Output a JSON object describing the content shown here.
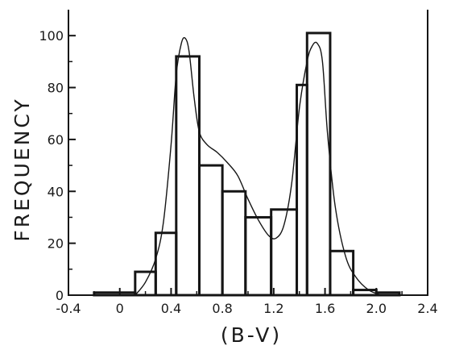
{
  "chart_data": {
    "type": "histogram",
    "title": "",
    "xlabel": "(B-V)",
    "ylabel": "FREQUENCY",
    "xlim": [
      -0.4,
      2.4
    ],
    "ylim": [
      0,
      110
    ],
    "xticks": [
      -0.4,
      0,
      0.4,
      0.8,
      1.2,
      1.6,
      2.0,
      2.4
    ],
    "xtick_labels": [
      "-0.4",
      "0",
      "0.4",
      "0.8",
      "1.2",
      "1.6",
      "2.0",
      "2.4"
    ],
    "yticks": [
      0,
      20,
      40,
      60,
      80,
      100
    ],
    "ytick_labels": [
      "0",
      "20",
      "40",
      "60",
      "80",
      "100"
    ],
    "grid": false,
    "series": [
      {
        "kind": "histogram",
        "bins": [
          {
            "x0": -0.2,
            "x1": 0.12,
            "y": 1
          },
          {
            "x0": 0.12,
            "x1": 0.28,
            "y": 9
          },
          {
            "x0": 0.28,
            "x1": 0.44,
            "y": 24
          },
          {
            "x0": 0.44,
            "x1": 0.62,
            "y": 92
          },
          {
            "x0": 0.62,
            "x1": 0.8,
            "y": 50
          },
          {
            "x0": 0.8,
            "x1": 0.98,
            "y": 40
          },
          {
            "x0": 0.98,
            "x1": 1.18,
            "y": 30
          },
          {
            "x0": 1.18,
            "x1": 1.38,
            "y": 33
          },
          {
            "x0": 1.38,
            "x1": 1.46,
            "y": 81
          },
          {
            "x0": 1.46,
            "x1": 1.64,
            "y": 101
          },
          {
            "x0": 1.64,
            "x1": 1.82,
            "y": 17
          },
          {
            "x0": 1.82,
            "x1": 2.0,
            "y": 2
          },
          {
            "x0": 2.0,
            "x1": 2.18,
            "y": 1
          }
        ]
      },
      {
        "kind": "curve",
        "x": [
          0.12,
          0.2,
          0.28,
          0.34,
          0.4,
          0.44,
          0.48,
          0.51,
          0.54,
          0.58,
          0.62,
          0.68,
          0.76,
          0.84,
          0.92,
          1.0,
          1.08,
          1.16,
          1.22,
          1.28,
          1.34,
          1.4,
          1.46,
          1.5,
          1.54,
          1.58,
          1.62,
          1.68,
          1.76,
          1.84,
          1.94,
          2.04
        ],
        "y": [
          0,
          5,
          14,
          28,
          58,
          85,
          97,
          99,
          94,
          76,
          63,
          58,
          55,
          51,
          46,
          37,
          29,
          23,
          22,
          27,
          43,
          72,
          90,
          96,
          97,
          90,
          62,
          34,
          15,
          7,
          2,
          0
        ]
      }
    ]
  }
}
